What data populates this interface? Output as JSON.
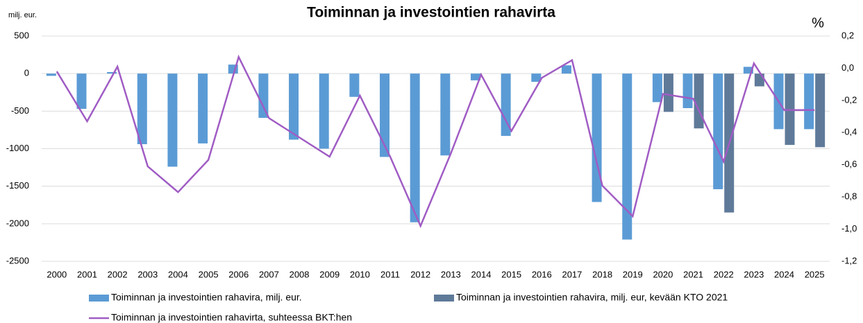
{
  "chart_data": {
    "type": "bar",
    "title": "Toiminnan ja investointien rahavirta",
    "y_label": "milj. eur.",
    "y2_label": "%",
    "categories": [
      "2000",
      "2001",
      "2002",
      "2003",
      "2004",
      "2005",
      "2006",
      "2007",
      "2008",
      "2009",
      "2010",
      "2011",
      "2012",
      "2013",
      "2014",
      "2015",
      "2016",
      "2017",
      "2018",
      "2019",
      "2020",
      "2021",
      "2022",
      "2023",
      "2024",
      "2025"
    ],
    "series": [
      {
        "name": "Toiminnan ja investointien rahavira, milj. eur.",
        "type": "bar",
        "color": "#5b9bd5",
        "values": [
          -30,
          -470,
          20,
          -940,
          -1240,
          -930,
          120,
          -590,
          -880,
          -1000,
          -310,
          -1110,
          -1980,
          -1090,
          -90,
          -830,
          -110,
          110,
          -1710,
          -2210,
          -380,
          -460,
          -1540,
          90,
          -740,
          -740
        ]
      },
      {
        "name": "Toiminnan ja investointien rahavira, milj. eur, kevään KTO 2021",
        "type": "bar",
        "color": "#5f7a99",
        "values": [
          null,
          null,
          null,
          null,
          null,
          null,
          null,
          null,
          null,
          null,
          null,
          null,
          null,
          null,
          null,
          null,
          null,
          null,
          null,
          null,
          -510,
          -730,
          -1850,
          -170,
          -950,
          -980
        ]
      },
      {
        "name": "Toiminnan ja investointien rahavirta, suhteessa BKT:hen",
        "type": "line",
        "axis": "y2",
        "color": "#a05cc4",
        "values": [
          -0.02,
          -0.33,
          0.01,
          -0.61,
          -0.77,
          -0.57,
          0.07,
          -0.31,
          -0.43,
          -0.55,
          -0.17,
          -0.55,
          -0.98,
          -0.53,
          -0.04,
          -0.39,
          -0.06,
          0.05,
          -0.73,
          -0.92,
          -0.16,
          -0.19,
          -0.58,
          0.03,
          -0.26,
          -0.26
        ]
      }
    ],
    "ylim": [
      -2500,
      500
    ],
    "yticks": [
      500,
      0,
      -500,
      -1000,
      -1500,
      -2000,
      -2500
    ],
    "y2lim": [
      -1.2,
      0.2
    ],
    "y2ticks": [
      {
        "value": 0.2,
        "label": "0,2"
      },
      {
        "value": 0,
        "label": "0,0"
      },
      {
        "value": -0.2,
        "label": "-0,2"
      },
      {
        "value": -0.4,
        "label": "-0,4"
      },
      {
        "value": -0.6,
        "label": "-0,6"
      },
      {
        "value": -0.8,
        "label": "-0,8"
      },
      {
        "value": -1.0,
        "label": "-1,0"
      },
      {
        "value": -1.2,
        "label": "-1,2"
      }
    ],
    "grid": true,
    "legend": "bottom"
  }
}
